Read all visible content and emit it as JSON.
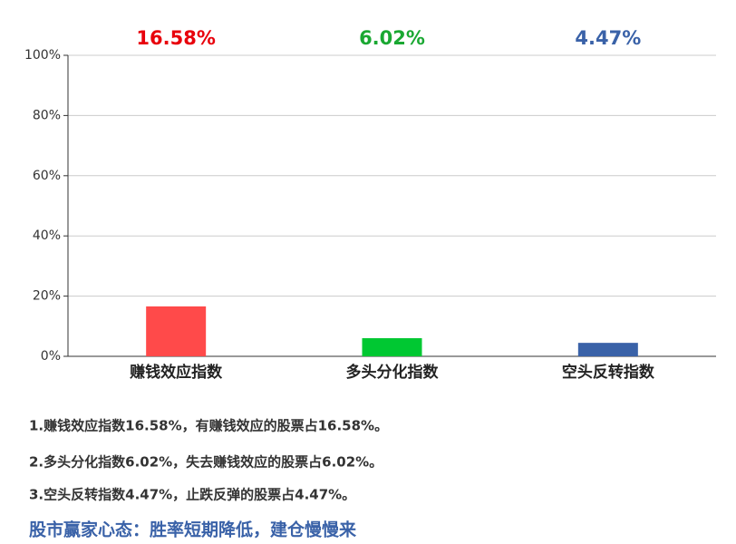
{
  "chart_data": {
    "type": "bar",
    "categories": [
      "赚钱效应指数",
      "多头分化指数",
      "空头反转指数"
    ],
    "values": [
      16.58,
      6.02,
      4.47
    ],
    "value_labels": [
      "16.58%",
      "6.02%",
      "4.47%"
    ],
    "colors": [
      "#ff4a4a",
      "#00c832",
      "#3a62a8"
    ],
    "label_colors": [
      "#e8000b",
      "#1aa832",
      "#3a62a8"
    ],
    "ylim": [
      0,
      100
    ],
    "yticks": [
      {
        "value": 0,
        "label": "0%"
      },
      {
        "value": 20,
        "label": "20%"
      },
      {
        "value": 40,
        "label": "40%"
      },
      {
        "value": 60,
        "label": "60%"
      },
      {
        "value": 80,
        "label": "80%"
      },
      {
        "value": 100,
        "label": "100%"
      }
    ],
    "grid": true
  },
  "notes": [
    "1.赚钱效应指数16.58%，有赚钱效应的股票占16.58%。",
    "2.多头分化指数6.02%，失去赚钱效应的股票占6.02%。",
    "3.空头反转指数4.47%，止跌反弹的股票占4.47%。"
  ],
  "conclusion": "股市赢家心态：胜率短期降低，建仓慢慢来"
}
